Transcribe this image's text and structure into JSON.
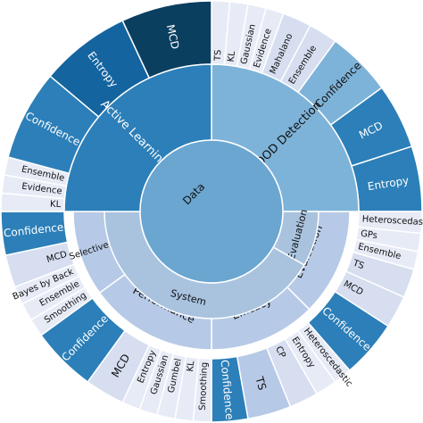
{
  "center": {
    "label": "Data"
  },
  "colors": {
    "dark": "#0b3f60",
    "mid_dark": "#1464a0",
    "mid": "#2c7fb8",
    "center": "#6aa6d0",
    "light": "#7eb3d9",
    "pale": "#a9c3df",
    "paler": "#b6c9e6",
    "faint": "#d6def0",
    "fainter": "#e7ebf6",
    "white": "#ffffff"
  },
  "ring1": [
    {
      "id": "ood",
      "label": "OOD Detection",
      "angles": [
        0,
        90
      ],
      "color": "light"
    },
    {
      "id": "eval1",
      "label": "Evaluation",
      "angles": [
        90,
        120
      ],
      "color": "pale"
    },
    {
      "id": "system",
      "label": "System",
      "angles": [
        120,
        270
      ],
      "color": "pale"
    },
    {
      "id": "active",
      "label": "Active Learning",
      "angles": [
        270,
        360
      ],
      "color": "mid"
    }
  ],
  "ring2": [
    {
      "id": "eval2",
      "label": "Evaluation",
      "angles": [
        90,
        135
      ],
      "color": "paler"
    },
    {
      "id": "efficacy",
      "label": "Efficacy",
      "angles": [
        135,
        180
      ],
      "color": "paler"
    },
    {
      "id": "performance",
      "label": "Performance",
      "angles": [
        180,
        234
      ],
      "color": "paler"
    },
    {
      "id": "selective",
      "label": "Selective prediction",
      "angles": [
        234,
        270
      ],
      "color": "paler"
    }
  ],
  "outer": [
    {
      "label": "TS",
      "angles": [
        0,
        5
      ],
      "color": "fainter"
    },
    {
      "label": "KL",
      "angles": [
        5,
        10
      ],
      "color": "fainter"
    },
    {
      "label": "Gaussian",
      "angles": [
        10,
        15
      ],
      "color": "fainter"
    },
    {
      "label": "Evidence",
      "angles": [
        15,
        20
      ],
      "color": "fainter"
    },
    {
      "label": "Mahalano",
      "angles": [
        20,
        28
      ],
      "color": "faint"
    },
    {
      "label": "Ensemble",
      "angles": [
        28,
        36
      ],
      "color": "faint"
    },
    {
      "label": "Confidence",
      "angles": [
        36,
        54
      ],
      "color": "light"
    },
    {
      "label": "MCD",
      "angles": [
        54,
        72
      ],
      "color": "mid"
    },
    {
      "label": "Entropy",
      "angles": [
        72,
        90
      ],
      "color": "mid"
    },
    {
      "label": "Heteroscedastic",
      "angles": [
        90,
        96
      ],
      "color": "fainter"
    },
    {
      "label": "GPs",
      "angles": [
        96,
        101
      ],
      "color": "fainter"
    },
    {
      "label": "Ensemble",
      "angles": [
        101,
        106
      ],
      "color": "fainter"
    },
    {
      "label": "TS",
      "angles": [
        106,
        114
      ],
      "color": "faint"
    },
    {
      "label": "MCD",
      "angles": [
        114,
        123
      ],
      "color": "faint"
    },
    {
      "label": "Confidence",
      "angles": [
        123,
        139
      ],
      "color": "mid"
    },
    {
      "label": "Heteroscedastic",
      "angles": [
        139,
        144
      ],
      "color": "fainter"
    },
    {
      "label": "Entropy",
      "angles": [
        144,
        150
      ],
      "color": "fainter"
    },
    {
      "label": "CP",
      "angles": [
        150,
        158
      ],
      "color": "faint"
    },
    {
      "label": "TS",
      "angles": [
        158,
        170
      ],
      "color": "paler"
    },
    {
      "label": "Confidence",
      "angles": [
        170,
        180
      ],
      "color": "mid"
    },
    {
      "label": "Smoothing",
      "angles": [
        180,
        185
      ],
      "color": "fainter"
    },
    {
      "label": "KL",
      "angles": [
        185,
        190
      ],
      "color": "fainter"
    },
    {
      "label": "Gumbel",
      "angles": [
        190,
        195
      ],
      "color": "fainter"
    },
    {
      "label": "Gaussian",
      "angles": [
        195,
        200
      ],
      "color": "fainter"
    },
    {
      "label": "Entropy",
      "angles": [
        200,
        205
      ],
      "color": "fainter"
    },
    {
      "label": "MCD",
      "angles": [
        205,
        216
      ],
      "color": "faint"
    },
    {
      "label": "Confidence",
      "angles": [
        216,
        234
      ],
      "color": "mid"
    },
    {
      "label": "Smoothing",
      "angles": [
        234,
        239
      ],
      "color": "fainter"
    },
    {
      "label": "Ensemble",
      "angles": [
        239,
        244
      ],
      "color": "fainter"
    },
    {
      "label": "Bayes by Back",
      "angles": [
        244,
        249
      ],
      "color": "fainter"
    },
    {
      "label": "MCD",
      "angles": [
        249,
        258
      ],
      "color": "faint"
    },
    {
      "label": "Confidence",
      "angles": [
        258,
        270
      ],
      "color": "mid"
    },
    {
      "label": "KL",
      "angles": [
        270,
        275
      ],
      "color": "fainter"
    },
    {
      "label": "Evidence",
      "angles": [
        275,
        280
      ],
      "color": "fainter"
    },
    {
      "label": "Ensemble",
      "angles": [
        280,
        285
      ],
      "color": "fainter"
    },
    {
      "label": "Confidence",
      "angles": [
        285,
        310
      ],
      "color": "mid"
    },
    {
      "label": "Entropy",
      "angles": [
        310,
        335
      ],
      "color": "mid_dark"
    },
    {
      "label": "MCD",
      "angles": [
        335,
        360
      ],
      "color": "dark"
    }
  ]
}
